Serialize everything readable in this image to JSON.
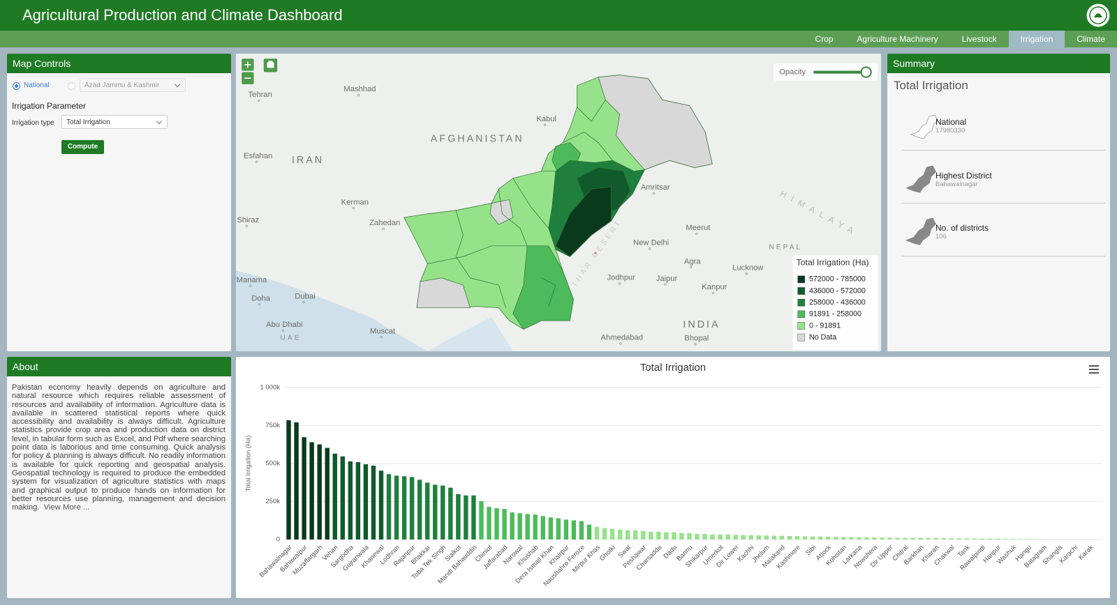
{
  "header": {
    "title": "Agricultural Production and Climate Dashboard",
    "tabs": [
      "Crop",
      "Agriculture Machinery",
      "Livestock",
      "Irrigation",
      "Climate"
    ],
    "active_tab": 3
  },
  "map_controls": {
    "title": "Map Controls",
    "scope_options": [
      "National",
      "Azad Jammu & Kashmir"
    ],
    "parameter_heading": "Irrigation Parameter",
    "type_label": "Irrigation type",
    "type_value": "Total Irrigation",
    "button": "Compute"
  },
  "map": {
    "opacity_label": "Opacity",
    "places": [
      "Tehran",
      "Mashhad",
      "Kabul",
      "AFGHANISTAN",
      "Esfahan",
      "IRAN",
      "Kerman",
      "Zahedan",
      "Shiraz",
      "Amritsar",
      "Meerut",
      "New Delhi",
      "Agra",
      "Lucknow",
      "Jodhpur",
      "Jaipur",
      "Kanpur",
      "INDIA",
      "Bhopal",
      "Ahmedabad",
      "Manama",
      "Doha",
      "Dubai",
      "Abu Dhabi",
      "UAE",
      "Muscat",
      "NEPAL",
      "HIMALAYA",
      "THAR DESERT"
    ],
    "legend": {
      "title": "Total Irrigation (Ha)",
      "classes": [
        {
          "label": "572000 - 785000",
          "from": 572000,
          "to": 785000,
          "color": "#0a3a1d"
        },
        {
          "label": "436000 - 572000",
          "from": 436000,
          "to": 572000,
          "color": "#105a2b"
        },
        {
          "label": "258000 - 436000",
          "from": 258000,
          "to": 436000,
          "color": "#1f7f3d"
        },
        {
          "label": "91891 - 258000",
          "from": 91891,
          "to": 258000,
          "color": "#4dbb5b"
        },
        {
          "label": "0 - 91891",
          "from": 0,
          "to": 91891,
          "color": "#96e28a"
        },
        {
          "label": "No Data",
          "color": "#d8d8d8"
        }
      ]
    }
  },
  "summary": {
    "title": "Summary",
    "subtitle": "Total Irrigation",
    "items": [
      {
        "label": "National",
        "value": 17980330
      },
      {
        "label": "Highest District",
        "value": "Bahawalnagar"
      },
      {
        "label": "No. of districts",
        "value": 106
      }
    ]
  },
  "about": {
    "title": "About",
    "text": "Pakistan economy heavily depends on agriculture and natural resource which requires reliable assessment of resources and availability of information. Agriculture data is available in scattered statistical reports where quick accessibility and availability is always difficult. Agriculture statistics provide crop area and production data on district level, in tabular form such as Excel, and Pdf where searching point data is laborious and time consuming. Quick analysis for policy & planning is always difficult. No readily information is available for quick reporting and geospatial analysis. Geospatial technology is required to produce the embedded system for visualization of agriculture statistics with maps and graphical output to produce hands on information for better resources use planning, management and decision making.",
    "link": "View More ..."
  },
  "chart_data": {
    "type": "bar",
    "title": "Total Irrigation",
    "y_label": "Total Irrigation (Ha)",
    "ylim": [
      0,
      1000000
    ],
    "yticks": [
      0,
      {
        "value": 250000,
        "label": "250k"
      },
      {
        "value": 500000,
        "label": "500k"
      },
      {
        "value": 750000,
        "label": "750k"
      },
      {
        "value": 1000000,
        "label": "1 000k"
      }
    ],
    "grid": true,
    "categories": [
      "Bahawalnagar",
      null,
      "Bahawalpur",
      null,
      "Muzaffargarh",
      null,
      "Vehari",
      null,
      "Sargodha",
      null,
      "Gujranwala",
      null,
      "Khanewal",
      null,
      "Lodhran",
      null,
      "Rajanpur",
      null,
      "Bhakkar",
      null,
      "Toba Tek Singh",
      null,
      "Sialkot",
      null,
      "Mandi Bahauddin",
      null,
      "Chiniot",
      null,
      "Jaffarabad",
      null,
      "Narowal",
      null,
      "Khushab",
      null,
      "Dera Ismail Khan",
      null,
      "Khairpur",
      null,
      "Naushahro Feroze",
      null,
      "Mirpur Khas",
      null,
      "Ghotki",
      null,
      "Swat",
      null,
      "Peshawar",
      null,
      "Charsadda",
      null,
      "Dadu",
      null,
      "Bannu",
      null,
      "Shikarpur",
      null,
      "Umerkot",
      null,
      "Dir Lower",
      null,
      "Kachhi",
      null,
      "Jhelum",
      null,
      "Malakand",
      null,
      "Kashmore",
      null,
      "Sibi",
      null,
      "Attock",
      null,
      "Kohistan",
      null,
      "Larkana",
      null,
      "Nowshera",
      null,
      "Dir Upper",
      null,
      "Chitral",
      null,
      "Barkhan",
      null,
      "Kharan",
      null,
      "Chakwal",
      null,
      "Tank",
      null,
      "Rawalpindi",
      null,
      "Haripur",
      null,
      "Washuk",
      null,
      "Hangu",
      null,
      "Batagram",
      null,
      "Shangla",
      null,
      "Karachi",
      null,
      "Karak",
      null
    ],
    "values": [
      785000,
      771000,
      673000,
      640000,
      626000,
      603000,
      565000,
      547000,
      514000,
      509000,
      495000,
      486000,
      453000,
      430000,
      420000,
      416000,
      411000,
      393000,
      374000,
      360000,
      355000,
      341000,
      299000,
      290000,
      290000,
      252000,
      215000,
      206000,
      201000,
      178000,
      173000,
      168000,
      164000,
      154000,
      145000,
      140000,
      131000,
      126000,
      121000,
      98000,
      84000,
      75000,
      70000,
      65000,
      61000,
      61000,
      56000,
      51000,
      51000,
      47000,
      47000,
      42000,
      42000,
      37000,
      37000,
      33000,
      33000,
      33000,
      30000,
      29000,
      28000,
      27000,
      26000,
      25000,
      24000,
      23000,
      22000,
      21000,
      20000,
      19000,
      18000,
      17000,
      16000,
      15000,
      14500,
      14000,
      13000,
      12500,
      12000,
      11500,
      11000,
      10500,
      10000,
      9500,
      9000,
      8500,
      8000,
      7500,
      7000,
      6500,
      6000,
      5500,
      5000,
      4500,
      4000,
      3500,
      3000,
      2500,
      2000,
      1500,
      1000,
      500,
      300,
      100,
      50,
      0
    ]
  }
}
